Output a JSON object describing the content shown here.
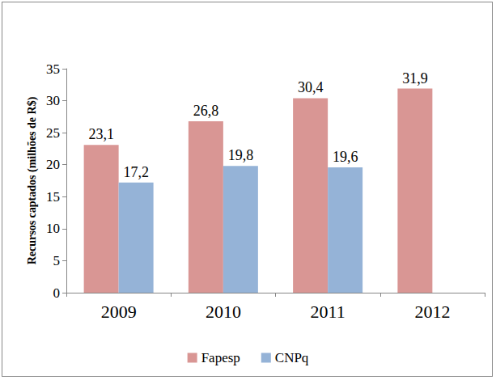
{
  "chart_data": {
    "type": "bar",
    "categories": [
      "2009",
      "2010",
      "2011",
      "2012"
    ],
    "series": [
      {
        "name": "Fapesp",
        "color": "#d99694",
        "values": [
          23.1,
          26.8,
          30.4,
          31.9
        ],
        "value_labels": [
          "23,1",
          "26,8",
          "30,4",
          "31,9"
        ]
      },
      {
        "name": "CNPq",
        "color": "#95b3d7",
        "values": [
          17.2,
          19.8,
          19.6,
          null
        ],
        "value_labels": [
          "17,2",
          "19,8",
          "19,6",
          null
        ]
      }
    ],
    "y_label": "Recursos captados (milhões de R$)",
    "ylim": [
      0,
      35
    ],
    "yticks": [
      0,
      5,
      10,
      15,
      20,
      25,
      30,
      35
    ],
    "grid": false,
    "legend": "bottom",
    "data_labels": true
  }
}
